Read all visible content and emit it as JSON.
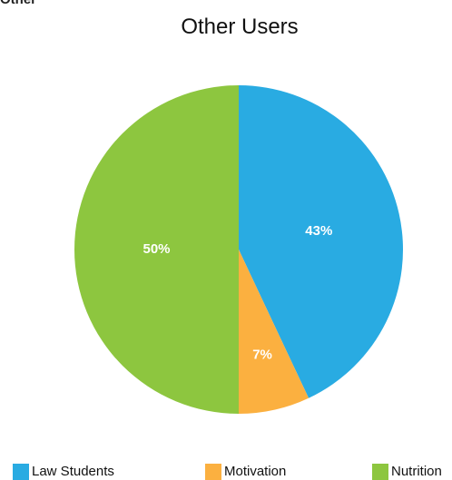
{
  "clipped_text": "Other",
  "chart_data": {
    "type": "pie",
    "title": "Other Users",
    "slices": [
      {
        "label": "Law Students",
        "value": 43,
        "display": "43%",
        "color": "#29abe2"
      },
      {
        "label": "Motivation",
        "value": 7,
        "display": "7%",
        "color": "#fbb040"
      },
      {
        "label": "Nutrition",
        "value": 50,
        "display": "50%",
        "color": "#8dc63f"
      }
    ],
    "legend_position": "bottom"
  }
}
